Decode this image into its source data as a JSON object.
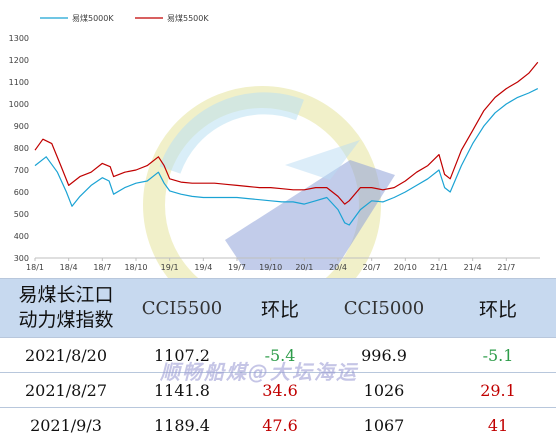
{
  "chart_data": {
    "type": "line",
    "legend": {
      "placement": "top-left",
      "entries": [
        "易煤5000K",
        "易煤5500K"
      ]
    },
    "ylim": [
      300,
      1300
    ],
    "yticks": [
      300,
      400,
      500,
      600,
      700,
      800,
      900,
      1000,
      1100,
      1200,
      1300
    ],
    "xtick_labels": [
      "18/1",
      "18/4",
      "18/7",
      "18/10",
      "19/1",
      "19/4",
      "19/7",
      "19/10",
      "20/1",
      "20/4",
      "20/7",
      "20/10",
      "21/1",
      "21/4",
      "21/7"
    ],
    "xlim_month_index": [
      0,
      45
    ],
    "grid": false,
    "series": [
      {
        "name": "易煤5000K",
        "color": "#1ba3d4",
        "points": [
          [
            0,
            720
          ],
          [
            1,
            760
          ],
          [
            2,
            690
          ],
          [
            2.8,
            600
          ],
          [
            3.3,
            535
          ],
          [
            4,
            580
          ],
          [
            5,
            630
          ],
          [
            6,
            665
          ],
          [
            6.6,
            650
          ],
          [
            7,
            590
          ],
          [
            8,
            620
          ],
          [
            9,
            640
          ],
          [
            10,
            650
          ],
          [
            11,
            690
          ],
          [
            11.5,
            640
          ],
          [
            12,
            605
          ],
          [
            13,
            590
          ],
          [
            14,
            580
          ],
          [
            15,
            575
          ],
          [
            16,
            575
          ],
          [
            17,
            575
          ],
          [
            18,
            575
          ],
          [
            19,
            570
          ],
          [
            20,
            565
          ],
          [
            21,
            560
          ],
          [
            22,
            555
          ],
          [
            23,
            555
          ],
          [
            24,
            545
          ],
          [
            25,
            560
          ],
          [
            26,
            575
          ],
          [
            27,
            520
          ],
          [
            27.6,
            460
          ],
          [
            28,
            450
          ],
          [
            29,
            520
          ],
          [
            30,
            560
          ],
          [
            31,
            555
          ],
          [
            32,
            575
          ],
          [
            33,
            600
          ],
          [
            34,
            630
          ],
          [
            35,
            660
          ],
          [
            36,
            700
          ],
          [
            36.5,
            620
          ],
          [
            37,
            600
          ],
          [
            38,
            720
          ],
          [
            39,
            820
          ],
          [
            40,
            900
          ],
          [
            41,
            960
          ],
          [
            42,
            1000
          ],
          [
            43,
            1030
          ],
          [
            44,
            1050
          ],
          [
            44.8,
            1070
          ]
        ]
      },
      {
        "name": "易煤5500K",
        "color": "#c00000",
        "points": [
          [
            0,
            790
          ],
          [
            0.7,
            840
          ],
          [
            1.5,
            820
          ],
          [
            2.3,
            720
          ],
          [
            3,
            630
          ],
          [
            4,
            670
          ],
          [
            5,
            690
          ],
          [
            6,
            730
          ],
          [
            6.7,
            715
          ],
          [
            7,
            670
          ],
          [
            8,
            690
          ],
          [
            9,
            700
          ],
          [
            10,
            720
          ],
          [
            11,
            760
          ],
          [
            11.5,
            720
          ],
          [
            12,
            660
          ],
          [
            13,
            645
          ],
          [
            14,
            640
          ],
          [
            15,
            640
          ],
          [
            16,
            640
          ],
          [
            17,
            635
          ],
          [
            18,
            630
          ],
          [
            19,
            625
          ],
          [
            20,
            620
          ],
          [
            21,
            620
          ],
          [
            22,
            615
          ],
          [
            23,
            610
          ],
          [
            24,
            610
          ],
          [
            25,
            620
          ],
          [
            26,
            620
          ],
          [
            27,
            580
          ],
          [
            27.6,
            545
          ],
          [
            28,
            560
          ],
          [
            29,
            620
          ],
          [
            30,
            620
          ],
          [
            31,
            610
          ],
          [
            32,
            620
          ],
          [
            33,
            650
          ],
          [
            34,
            690
          ],
          [
            35,
            720
          ],
          [
            36,
            770
          ],
          [
            36.5,
            680
          ],
          [
            37,
            660
          ],
          [
            38,
            790
          ],
          [
            39,
            880
          ],
          [
            40,
            970
          ],
          [
            41,
            1030
          ],
          [
            42,
            1070
          ],
          [
            43,
            1100
          ],
          [
            44,
            1140
          ],
          [
            44.8,
            1190
          ]
        ]
      }
    ]
  },
  "table": {
    "columns": [
      "易煤长江口动力煤指数",
      "CCI5500",
      "环比",
      "CCI5000",
      "环比"
    ],
    "rows": [
      {
        "date": "2021/8/20",
        "cci5500": "1107.2",
        "chg5500": "-5.4",
        "cci5000": "996.9",
        "chg5000": "-5.1"
      },
      {
        "date": "2021/8/27",
        "cci5500": "1141.8",
        "chg5500": "34.6",
        "cci5000": "1026",
        "chg5000": "29.1"
      },
      {
        "date": "2021/9/3",
        "cci5500": "1189.4",
        "chg5500": "47.6",
        "cci5000": "1067",
        "chg5000": "41"
      }
    ]
  },
  "watermark": {
    "text": "顺畅船煤@大坛海运"
  },
  "colors": {
    "header_bg": "#c7d9ef",
    "positive": "#c00000",
    "negative": "#2e9c4a"
  }
}
